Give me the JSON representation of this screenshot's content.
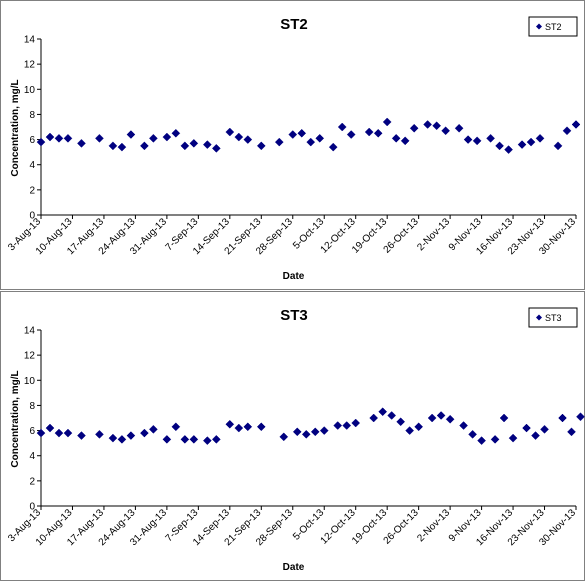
{
  "colors": {
    "marker": "#000080",
    "axis": "#000000",
    "frame": "#808080"
  },
  "chart_data": [
    {
      "type": "scatter",
      "title": "ST2",
      "xlabel": "Date",
      "ylabel": "Concentration, mg/L",
      "ylim": [
        0,
        14
      ],
      "yticks": [
        "0",
        "2",
        "4",
        "6",
        "8",
        "10",
        "12",
        "14"
      ],
      "xlim": [
        "2013-08-03",
        "2013-11-30"
      ],
      "xticks": [
        "3-Aug-13",
        "10-Aug-13",
        "17-Aug-13",
        "24-Aug-13",
        "31-Aug-13",
        "7-Sep-13",
        "14-Sep-13",
        "21-Sep-13",
        "28-Sep-13",
        "5-Oct-13",
        "12-Oct-13",
        "19-Oct-13",
        "26-Oct-13",
        "2-Nov-13",
        "9-Nov-13",
        "16-Nov-13",
        "23-Nov-13",
        "30-Nov-13"
      ],
      "grid": false,
      "legend_position": "top-right",
      "series": [
        {
          "name": "ST2",
          "points": [
            {
              "x": "2013-08-03",
              "y": 5.8
            },
            {
              "x": "2013-08-05",
              "y": 6.2
            },
            {
              "x": "2013-08-07",
              "y": 6.1
            },
            {
              "x": "2013-08-09",
              "y": 6.1
            },
            {
              "x": "2013-08-12",
              "y": 5.7
            },
            {
              "x": "2013-08-16",
              "y": 6.1
            },
            {
              "x": "2013-08-19",
              "y": 5.5
            },
            {
              "x": "2013-08-21",
              "y": 5.4
            },
            {
              "x": "2013-08-23",
              "y": 6.4
            },
            {
              "x": "2013-08-26",
              "y": 5.5
            },
            {
              "x": "2013-08-28",
              "y": 6.1
            },
            {
              "x": "2013-08-31",
              "y": 6.2
            },
            {
              "x": "2013-09-02",
              "y": 6.5
            },
            {
              "x": "2013-09-04",
              "y": 5.5
            },
            {
              "x": "2013-09-06",
              "y": 5.7
            },
            {
              "x": "2013-09-09",
              "y": 5.6
            },
            {
              "x": "2013-09-11",
              "y": 5.3
            },
            {
              "x": "2013-09-14",
              "y": 6.6
            },
            {
              "x": "2013-09-16",
              "y": 6.2
            },
            {
              "x": "2013-09-18",
              "y": 6.0
            },
            {
              "x": "2013-09-21",
              "y": 5.5
            },
            {
              "x": "2013-09-25",
              "y": 5.8
            },
            {
              "x": "2013-09-28",
              "y": 6.4
            },
            {
              "x": "2013-09-30",
              "y": 6.5
            },
            {
              "x": "2013-10-02",
              "y": 5.8
            },
            {
              "x": "2013-10-04",
              "y": 6.1
            },
            {
              "x": "2013-10-07",
              "y": 5.4
            },
            {
              "x": "2013-10-09",
              "y": 7.0
            },
            {
              "x": "2013-10-11",
              "y": 6.4
            },
            {
              "x": "2013-10-15",
              "y": 6.6
            },
            {
              "x": "2013-10-17",
              "y": 6.5
            },
            {
              "x": "2013-10-19",
              "y": 7.4
            },
            {
              "x": "2013-10-21",
              "y": 6.1
            },
            {
              "x": "2013-10-23",
              "y": 5.9
            },
            {
              "x": "2013-10-25",
              "y": 6.9
            },
            {
              "x": "2013-10-28",
              "y": 7.2
            },
            {
              "x": "2013-10-30",
              "y": 7.1
            },
            {
              "x": "2013-11-01",
              "y": 6.7
            },
            {
              "x": "2013-11-04",
              "y": 6.9
            },
            {
              "x": "2013-11-06",
              "y": 6.0
            },
            {
              "x": "2013-11-08",
              "y": 5.9
            },
            {
              "x": "2013-11-11",
              "y": 6.1
            },
            {
              "x": "2013-11-13",
              "y": 5.5
            },
            {
              "x": "2013-11-15",
              "y": 5.2
            },
            {
              "x": "2013-11-18",
              "y": 5.6
            },
            {
              "x": "2013-11-20",
              "y": 5.8
            },
            {
              "x": "2013-11-22",
              "y": 6.1
            },
            {
              "x": "2013-11-26",
              "y": 5.5
            },
            {
              "x": "2013-11-28",
              "y": 6.7
            },
            {
              "x": "2013-11-30",
              "y": 7.2
            }
          ]
        }
      ]
    },
    {
      "type": "scatter",
      "title": "ST3",
      "xlabel": "Date",
      "ylabel": "Concentration, mg/L",
      "ylim": [
        0,
        14
      ],
      "yticks": [
        "0",
        "2",
        "4",
        "6",
        "8",
        "10",
        "12",
        "14"
      ],
      "xlim": [
        "2013-08-03",
        "2013-11-30"
      ],
      "xticks": [
        "3-Aug-13",
        "10-Aug-13",
        "17-Aug-13",
        "24-Aug-13",
        "31-Aug-13",
        "7-Sep-13",
        "14-Sep-13",
        "21-Sep-13",
        "28-Sep-13",
        "5-Oct-13",
        "12-Oct-13",
        "19-Oct-13",
        "26-Oct-13",
        "2-Nov-13",
        "9-Nov-13",
        "16-Nov-13",
        "23-Nov-13",
        "30-Nov-13"
      ],
      "grid": false,
      "legend_position": "top-right",
      "series": [
        {
          "name": "ST3",
          "points": [
            {
              "x": "2013-08-03",
              "y": 5.8
            },
            {
              "x": "2013-08-05",
              "y": 6.2
            },
            {
              "x": "2013-08-07",
              "y": 5.8
            },
            {
              "x": "2013-08-09",
              "y": 5.8
            },
            {
              "x": "2013-08-12",
              "y": 5.6
            },
            {
              "x": "2013-08-16",
              "y": 5.7
            },
            {
              "x": "2013-08-19",
              "y": 5.4
            },
            {
              "x": "2013-08-21",
              "y": 5.3
            },
            {
              "x": "2013-08-23",
              "y": 5.6
            },
            {
              "x": "2013-08-26",
              "y": 5.8
            },
            {
              "x": "2013-08-28",
              "y": 6.1
            },
            {
              "x": "2013-08-31",
              "y": 5.3
            },
            {
              "x": "2013-09-02",
              "y": 6.3
            },
            {
              "x": "2013-09-04",
              "y": 5.3
            },
            {
              "x": "2013-09-06",
              "y": 5.3
            },
            {
              "x": "2013-09-09",
              "y": 5.2
            },
            {
              "x": "2013-09-11",
              "y": 5.3
            },
            {
              "x": "2013-09-14",
              "y": 6.5
            },
            {
              "x": "2013-09-16",
              "y": 6.2
            },
            {
              "x": "2013-09-18",
              "y": 6.3
            },
            {
              "x": "2013-09-21",
              "y": 6.3
            },
            {
              "x": "2013-09-26",
              "y": 5.5
            },
            {
              "x": "2013-09-29",
              "y": 5.9
            },
            {
              "x": "2013-10-01",
              "y": 5.7
            },
            {
              "x": "2013-10-03",
              "y": 5.9
            },
            {
              "x": "2013-10-05",
              "y": 6.0
            },
            {
              "x": "2013-10-08",
              "y": 6.4
            },
            {
              "x": "2013-10-10",
              "y": 6.4
            },
            {
              "x": "2013-10-12",
              "y": 6.6
            },
            {
              "x": "2013-10-16",
              "y": 7.0
            },
            {
              "x": "2013-10-18",
              "y": 7.5
            },
            {
              "x": "2013-10-20",
              "y": 7.2
            },
            {
              "x": "2013-10-22",
              "y": 6.7
            },
            {
              "x": "2013-10-24",
              "y": 6.0
            },
            {
              "x": "2013-10-26",
              "y": 6.3
            },
            {
              "x": "2013-10-29",
              "y": 7.0
            },
            {
              "x": "2013-10-31",
              "y": 7.2
            },
            {
              "x": "2013-11-02",
              "y": 6.9
            },
            {
              "x": "2013-11-05",
              "y": 6.4
            },
            {
              "x": "2013-11-07",
              "y": 5.7
            },
            {
              "x": "2013-11-09",
              "y": 5.2
            },
            {
              "x": "2013-11-12",
              "y": 5.3
            },
            {
              "x": "2013-11-14",
              "y": 7.0
            },
            {
              "x": "2013-11-16",
              "y": 5.4
            },
            {
              "x": "2013-11-19",
              "y": 6.2
            },
            {
              "x": "2013-11-21",
              "y": 5.6
            },
            {
              "x": "2013-11-23",
              "y": 6.1
            },
            {
              "x": "2013-11-27",
              "y": 7.0
            },
            {
              "x": "2013-11-29",
              "y": 5.9
            },
            {
              "x": "2013-12-01",
              "y": 7.1
            }
          ]
        }
      ]
    }
  ]
}
